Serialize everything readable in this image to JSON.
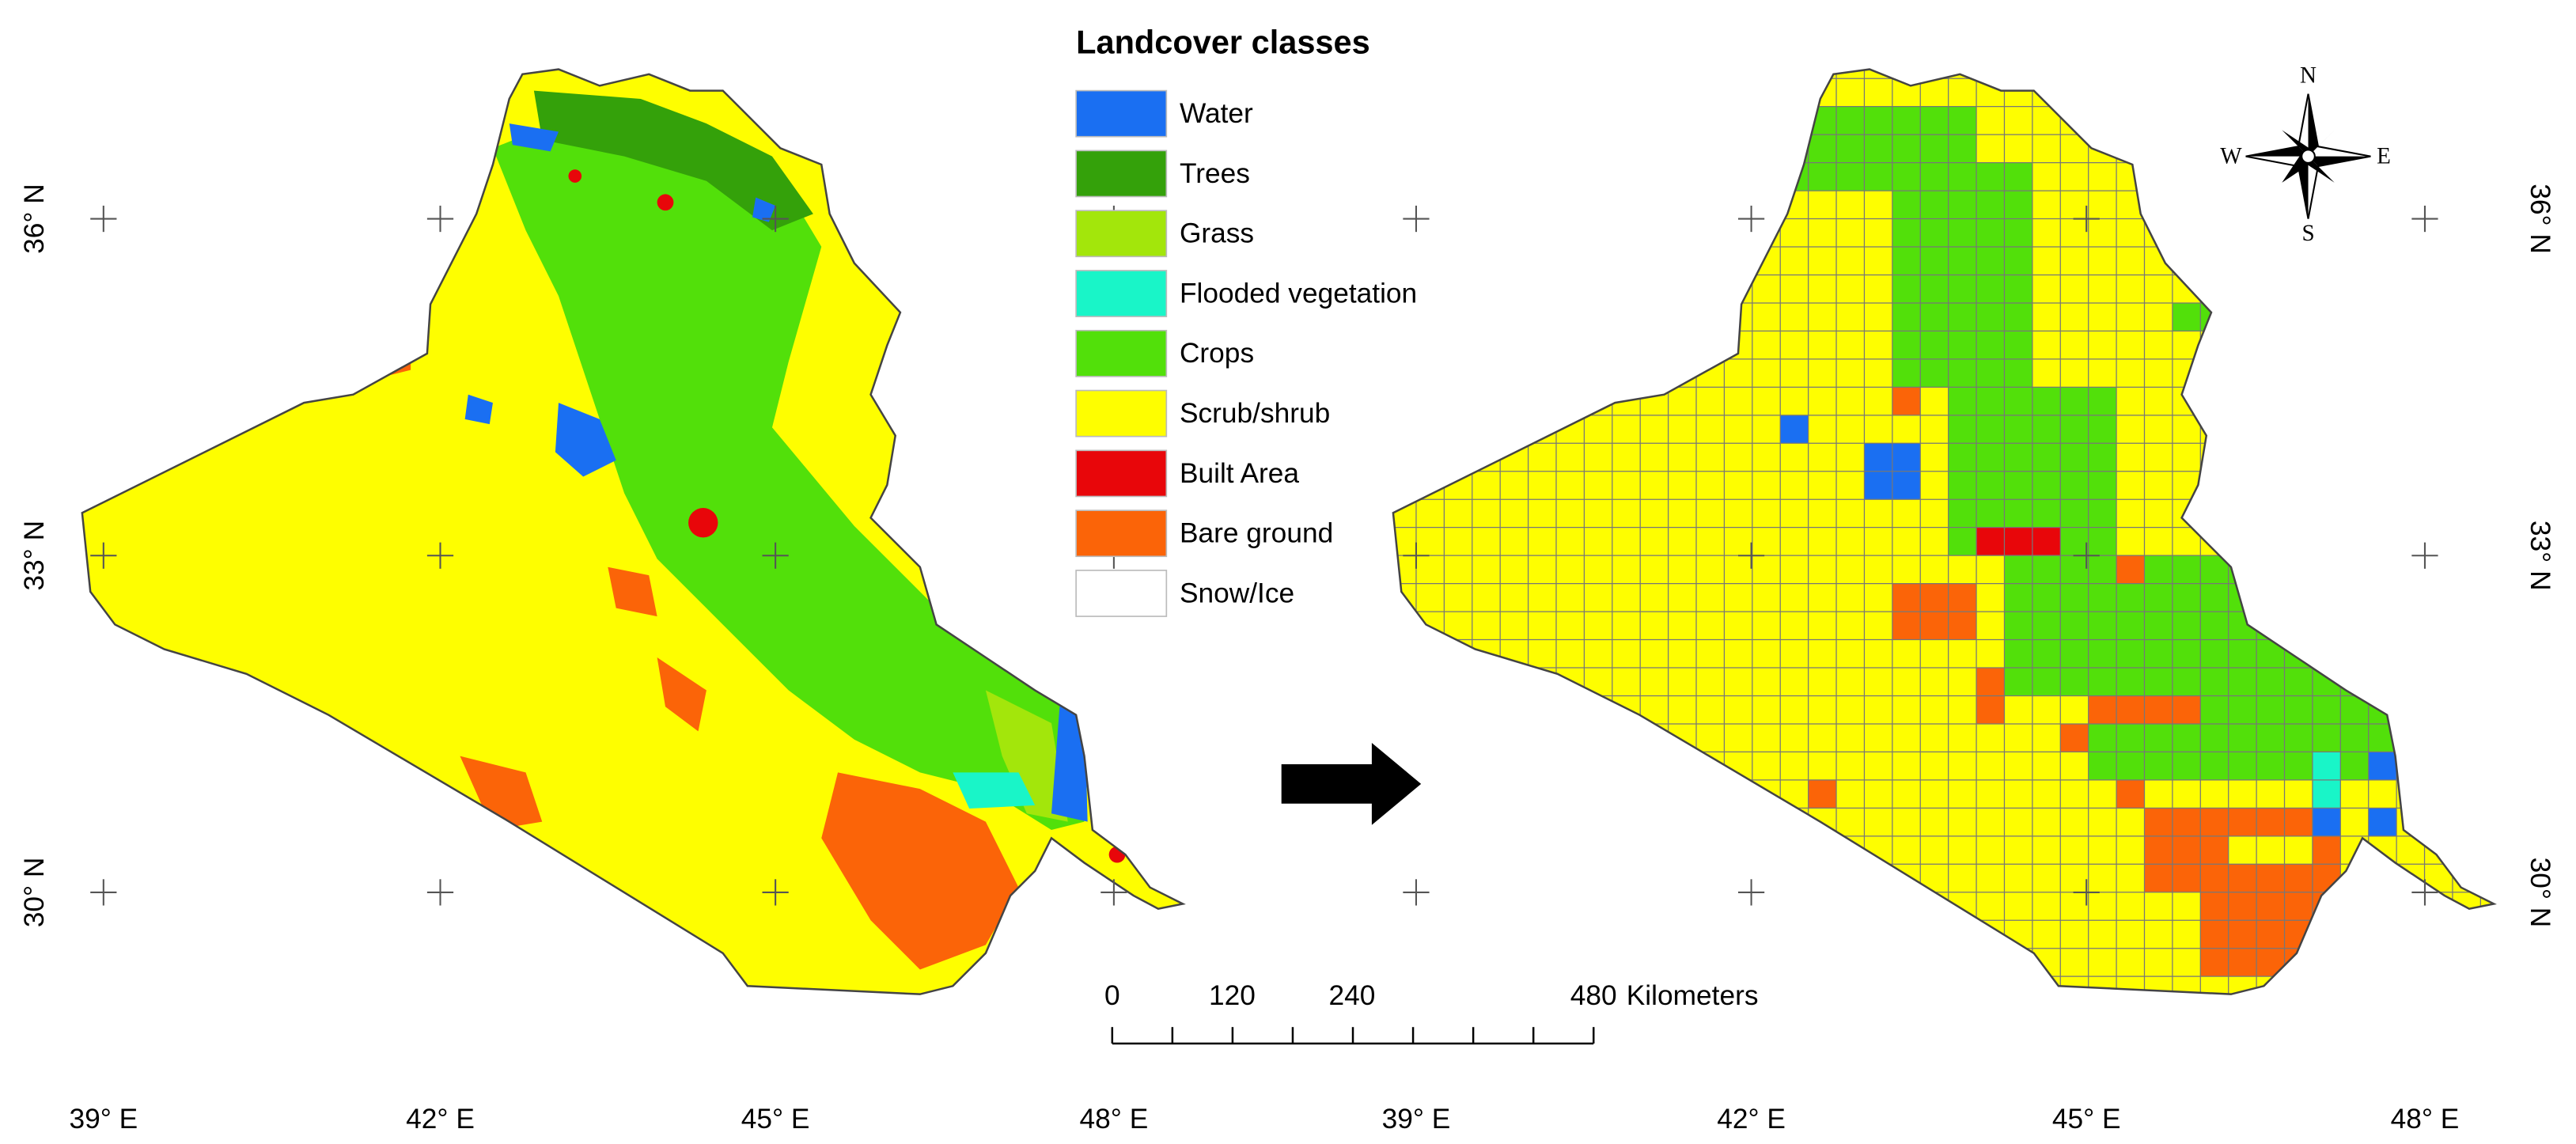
{
  "legend": {
    "title": "Landcover classes",
    "items": [
      {
        "label": "Water",
        "color": "#1a6ff2"
      },
      {
        "label": "Trees",
        "color": "#34a10a"
      },
      {
        "label": "Grass",
        "color": "#a3e60b"
      },
      {
        "label": "Flooded vegetation",
        "color": "#19f5c8"
      },
      {
        "label": "Crops",
        "color": "#52e00a"
      },
      {
        "label": "Scrub/shrub",
        "color": "#fefe00"
      },
      {
        "label": "Built Area",
        "color": "#e8060a"
      },
      {
        "label": "Bare ground",
        "color": "#fb6408"
      },
      {
        "label": "Snow/Ice",
        "color": "#ffffff"
      }
    ]
  },
  "scale_bar": {
    "labels": [
      "0",
      "120",
      "240",
      "480"
    ],
    "unit": "Kilometers"
  },
  "compass": {
    "n": "N",
    "s": "S",
    "e": "E",
    "w": "W"
  },
  "maps": [
    {
      "latitude_labels": [
        "36° N",
        "33° N",
        "30° N"
      ],
      "longitude_labels": [
        "39° E",
        "42° E",
        "45° E",
        "48° E"
      ]
    },
    {
      "latitude_labels": [
        "36° N",
        "33° N",
        "30° N"
      ],
      "longitude_labels": [
        "39° E",
        "42° E",
        "45° E",
        "48° E"
      ]
    }
  ]
}
